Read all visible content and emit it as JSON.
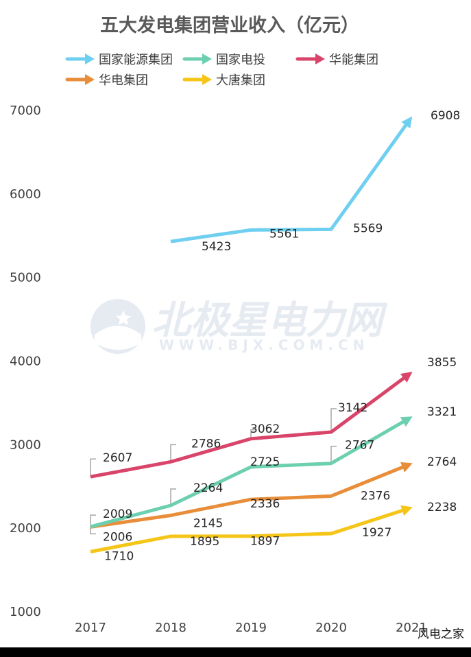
{
  "chart_data": {
    "type": "line",
    "title": "五大发电集团营业收入（亿元）",
    "categories": [
      "2017",
      "2018",
      "2019",
      "2020",
      "2021"
    ],
    "ylim": [
      1000,
      7000
    ],
    "yticks": [
      1000,
      2000,
      3000,
      4000,
      5000,
      6000,
      7000
    ],
    "grid": false,
    "legend": "top",
    "series": [
      {
        "name": "国家能源集团",
        "color": "#6ecff0",
        "values": [
          null,
          5423,
          5561,
          5569,
          6908
        ]
      },
      {
        "name": "国家电投",
        "color": "#6ccfb0",
        "values": [
          2009,
          2264,
          2725,
          2767,
          3321
        ]
      },
      {
        "name": "华能集团",
        "color": "#d9456a",
        "values": [
          2607,
          2786,
          3062,
          3142,
          3855
        ]
      },
      {
        "name": "华电集团",
        "color": "#e88e3a",
        "values": [
          2006,
          2145,
          2336,
          2376,
          2764
        ]
      },
      {
        "name": "大唐集团",
        "color": "#f5c518",
        "values": [
          1710,
          1895,
          1897,
          1927,
          2238
        ]
      }
    ]
  },
  "watermark": {
    "main": "北极星电力网",
    "sub": "WWW.BJX.COM.CN"
  },
  "source_label": "风电之家"
}
